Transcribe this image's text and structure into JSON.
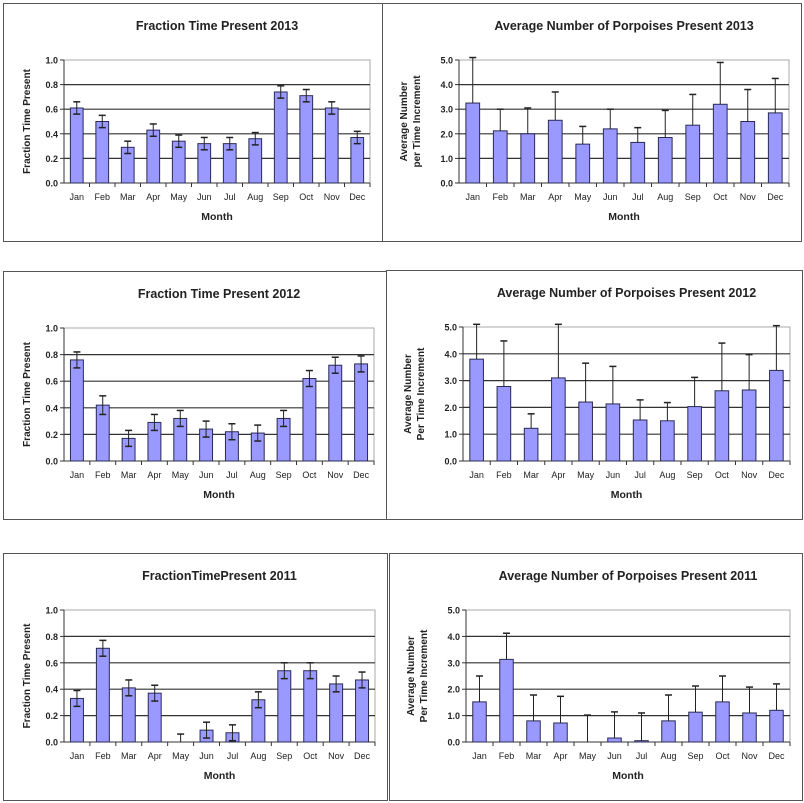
{
  "colors": {
    "bar": "#9999ff",
    "bar_outline": "#2a2a55",
    "grid": "#333333",
    "error_bar": "#222222"
  },
  "chart_data": [
    {
      "type": "bar",
      "title": "Fraction Time Present 2013",
      "xlabel": "Month",
      "ylabel": [
        "Fraction Time Present"
      ],
      "categories": [
        "Jan",
        "Feb",
        "Mar",
        "Apr",
        "May",
        "Jun",
        "Jul",
        "Aug",
        "Sep",
        "Oct",
        "Nov",
        "Dec"
      ],
      "values": [
        0.61,
        0.5,
        0.29,
        0.43,
        0.34,
        0.32,
        0.32,
        0.36,
        0.74,
        0.71,
        0.61,
        0.37
      ],
      "error_plus": [
        0.05,
        0.05,
        0.05,
        0.05,
        0.05,
        0.05,
        0.05,
        0.05,
        0.05,
        0.05,
        0.05,
        0.05
      ],
      "error_minus": [
        0.05,
        0.05,
        0.05,
        0.05,
        0.05,
        0.05,
        0.05,
        0.05,
        0.05,
        0.05,
        0.05,
        0.05
      ],
      "ylim": [
        0,
        1.0
      ],
      "yticks": [
        "0.0",
        "0.2",
        "0.4",
        "0.6",
        "0.8",
        "1.0"
      ],
      "grid": true,
      "legend": "none"
    },
    {
      "type": "bar",
      "title": "Average Number of Porpoises Present 2013",
      "xlabel": "Month",
      "ylabel": [
        "Average Number",
        "per Time Increment"
      ],
      "categories": [
        "Jan",
        "Feb",
        "Mar",
        "Apr",
        "May",
        "Jun",
        "Jul",
        "Aug",
        "Sep",
        "Oct",
        "Nov",
        "Dec"
      ],
      "values": [
        3.25,
        2.12,
        2.0,
        2.55,
        1.58,
        2.2,
        1.65,
        1.85,
        2.35,
        3.2,
        2.5,
        2.85
      ],
      "error_plus": [
        1.85,
        0.88,
        1.05,
        1.15,
        0.72,
        0.8,
        0.6,
        1.1,
        1.25,
        1.7,
        1.3,
        1.4
      ],
      "error_minus": [
        0,
        0,
        0,
        0,
        0,
        0,
        0,
        0,
        0,
        0,
        0,
        0
      ],
      "ylim": [
        0,
        5.0
      ],
      "yticks": [
        "0.0",
        "1.0",
        "2.0",
        "3.0",
        "4.0",
        "5.0"
      ],
      "grid": true,
      "legend": "none"
    },
    {
      "type": "bar",
      "title": "Fraction Time Present 2012",
      "xlabel": "Month",
      "ylabel": [
        "Fraction Time Present"
      ],
      "categories": [
        "Jan",
        "Feb",
        "Mar",
        "Apr",
        "May",
        "Jun",
        "Jul",
        "Aug",
        "Sep",
        "Oct",
        "Nov",
        "Dec"
      ],
      "values": [
        0.76,
        0.42,
        0.17,
        0.29,
        0.32,
        0.24,
        0.22,
        0.21,
        0.32,
        0.62,
        0.72,
        0.73
      ],
      "error_plus": [
        0.06,
        0.07,
        0.06,
        0.06,
        0.06,
        0.06,
        0.06,
        0.06,
        0.06,
        0.06,
        0.06,
        0.06
      ],
      "error_minus": [
        0.06,
        0.07,
        0.06,
        0.06,
        0.06,
        0.06,
        0.06,
        0.06,
        0.06,
        0.06,
        0.06,
        0.06
      ],
      "ylim": [
        0,
        1.0
      ],
      "yticks": [
        "0.0",
        "0.2",
        "0.4",
        "0.6",
        "0.8",
        "1.0"
      ],
      "grid": true,
      "legend": "none"
    },
    {
      "type": "bar",
      "title": "Average Number of Porpoises Present 2012",
      "xlabel": "Month",
      "ylabel": [
        "Average Number",
        "Per Time Increment"
      ],
      "categories": [
        "Jan",
        "Feb",
        "Mar",
        "Apr",
        "May",
        "Jun",
        "Jul",
        "Aug",
        "Sep",
        "Oct",
        "Nov",
        "Dec"
      ],
      "values": [
        3.8,
        2.78,
        1.22,
        3.1,
        2.2,
        2.13,
        1.53,
        1.5,
        2.03,
        2.62,
        2.65,
        3.38
      ],
      "error_plus": [
        1.3,
        1.7,
        0.54,
        2.0,
        1.45,
        1.4,
        0.75,
        0.68,
        1.09,
        1.78,
        1.32,
        1.67
      ],
      "error_minus": [
        0,
        0,
        0,
        0,
        0,
        0,
        0,
        0,
        0,
        0,
        0,
        0
      ],
      "ylim": [
        0,
        5.0
      ],
      "yticks": [
        "0.0",
        "1.0",
        "2.0",
        "3.0",
        "4.0",
        "5.0"
      ],
      "grid": true,
      "legend": "none"
    },
    {
      "type": "bar",
      "title": "FractionTimePresent 2011",
      "xlabel": "Month",
      "ylabel": [
        "Fraction Time Present"
      ],
      "categories": [
        "Jan",
        "Feb",
        "Mar",
        "Apr",
        "May",
        "Jun",
        "Jul",
        "Aug",
        "Sep",
        "Oct",
        "Nov",
        "Dec"
      ],
      "values": [
        0.33,
        0.71,
        0.41,
        0.37,
        0.0,
        0.09,
        0.07,
        0.32,
        0.54,
        0.54,
        0.44,
        0.47
      ],
      "error_plus": [
        0.06,
        0.06,
        0.06,
        0.06,
        0.06,
        0.06,
        0.06,
        0.06,
        0.06,
        0.06,
        0.06,
        0.06
      ],
      "error_minus": [
        0.06,
        0.06,
        0.06,
        0.06,
        0.0,
        0.06,
        0.06,
        0.06,
        0.06,
        0.06,
        0.06,
        0.06
      ],
      "ylim": [
        0,
        1.0
      ],
      "yticks": [
        "0.0",
        "0.2",
        "0.4",
        "0.6",
        "0.8",
        "1.0"
      ],
      "grid": true,
      "legend": "none"
    },
    {
      "type": "bar",
      "title": "Average Number of Porpoises Present 2011",
      "xlabel": "Month",
      "ylabel": [
        "Average Number",
        "Per Time Increment"
      ],
      "categories": [
        "Jan",
        "Feb",
        "Mar",
        "Apr",
        "May",
        "Jun",
        "Jul",
        "Aug",
        "Sep",
        "Oct",
        "Nov",
        "Dec"
      ],
      "values": [
        1.52,
        3.13,
        0.8,
        0.72,
        0.0,
        0.15,
        0.05,
        0.8,
        1.13,
        1.52,
        1.1,
        1.2
      ],
      "error_plus": [
        0.98,
        0.99,
        0.98,
        1.01,
        1.02,
        0.99,
        1.05,
        0.98,
        0.99,
        0.98,
        0.98,
        1.0
      ],
      "error_minus": [
        0,
        0,
        0,
        0,
        0,
        0,
        0,
        0,
        0,
        0,
        0,
        0
      ],
      "ylim": [
        0,
        5.0
      ],
      "yticks": [
        "0.0",
        "1.0",
        "2.0",
        "3.0",
        "4.0",
        "5.0"
      ],
      "grid": true,
      "legend": "none"
    }
  ]
}
